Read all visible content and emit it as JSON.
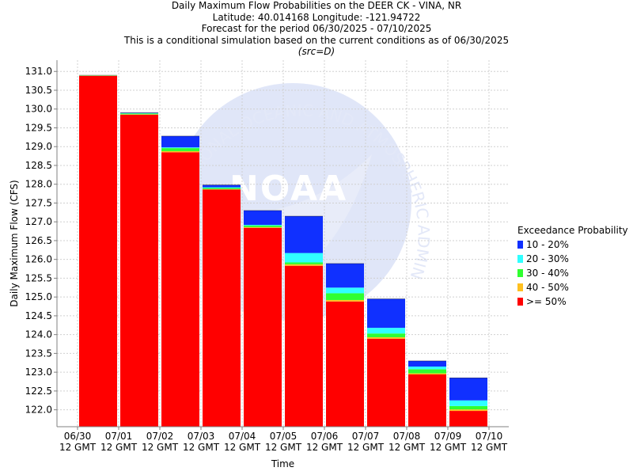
{
  "title_lines": [
    "Daily Maximum Flow Probabilities on the DEER CK - VINA, NR",
    "Latitude: 40.014168 Longitude: -121.94722",
    "Forecast for the period 06/30/2025 - 07/10/2025",
    "This is a conditional simulation based on the current conditions as of 06/30/2025"
  ],
  "subtitle": "(src=D)",
  "legend": {
    "title": "Exceedance Probability",
    "items": [
      {
        "label": "10 - 20%",
        "color": "#1030ff"
      },
      {
        "label": "20 - 30%",
        "color": "#30ffff"
      },
      {
        "label": "30 - 40%",
        "color": "#30ff30"
      },
      {
        "label": "40 - 50%",
        "color": "#ffc020"
      },
      {
        "label": ">= 50%",
        "color": "#ff0000"
      }
    ]
  },
  "watermark": {
    "text": "NOAA",
    "ring_text": "NATIONAL OCEANIC AND ATMOSPHERIC ADMINISTRATION"
  },
  "chart_data": {
    "type": "bar",
    "stacked": true,
    "xlabel": "Time",
    "ylabel": "Daily Maximum Flow (CFS)",
    "ylim": [
      121.55,
      131.3
    ],
    "yticks": [
      "122.0",
      "122.5",
      "123.0",
      "123.5",
      "124.0",
      "124.5",
      "125.0",
      "125.5",
      "126.0",
      "126.5",
      "127.0",
      "127.5",
      "128.0",
      "128.5",
      "129.0",
      "129.5",
      "130.0",
      "130.5",
      "131.0"
    ],
    "xticks": [
      {
        "date": "06/30",
        "sub": "12 GMT"
      },
      {
        "date": "07/01",
        "sub": "12 GMT"
      },
      {
        "date": "07/02",
        "sub": "12 GMT"
      },
      {
        "date": "07/03",
        "sub": "12 GMT"
      },
      {
        "date": "07/04",
        "sub": "12 GMT"
      },
      {
        "date": "07/05",
        "sub": "12 GMT"
      },
      {
        "date": "07/06",
        "sub": "12 GMT"
      },
      {
        "date": "07/07",
        "sub": "12 GMT"
      },
      {
        "date": "07/08",
        "sub": "12 GMT"
      },
      {
        "date": "07/09",
        "sub": "12 GMT"
      },
      {
        "date": "07/10",
        "sub": "12 GMT"
      }
    ],
    "grid": true,
    "legend_position": "right",
    "bars": [
      {
        "period": "06/30 - 07/01",
        "p50": 130.88,
        "p40": 130.89,
        "p30": 130.89,
        "p20": 130.9,
        "p10": 130.9
      },
      {
        "period": "07/01 - 07/02",
        "p50": 129.85,
        "p40": 129.86,
        "p30": 129.88,
        "p20": 129.89,
        "p10": 129.9
      },
      {
        "period": "07/02 - 07/03",
        "p50": 128.85,
        "p40": 128.88,
        "p30": 128.96,
        "p20": 128.98,
        "p10": 129.28
      },
      {
        "period": "07/03 - 07/04",
        "p50": 127.86,
        "p40": 127.87,
        "p30": 127.9,
        "p20": 127.92,
        "p10": 127.98
      },
      {
        "period": "07/04 - 07/05",
        "p50": 126.84,
        "p40": 126.86,
        "p30": 126.9,
        "p20": 126.92,
        "p10": 127.3
      },
      {
        "period": "07/05 - 07/06",
        "p50": 125.83,
        "p40": 125.87,
        "p30": 125.92,
        "p20": 126.17,
        "p10": 127.15
      },
      {
        "period": "07/06 - 07/07",
        "p50": 124.88,
        "p40": 124.92,
        "p30": 125.1,
        "p20": 125.25,
        "p10": 125.89
      },
      {
        "period": "07/07 - 07/08",
        "p50": 123.89,
        "p40": 123.93,
        "p30": 124.03,
        "p20": 124.18,
        "p10": 124.95
      },
      {
        "period": "07/08 - 07/09",
        "p50": 122.94,
        "p40": 122.97,
        "p30": 123.08,
        "p20": 123.15,
        "p10": 123.3
      },
      {
        "period": "07/09 - 07/10",
        "p50": 121.97,
        "p40": 122.01,
        "p30": 122.1,
        "p20": 122.25,
        "p10": 122.85
      }
    ]
  }
}
